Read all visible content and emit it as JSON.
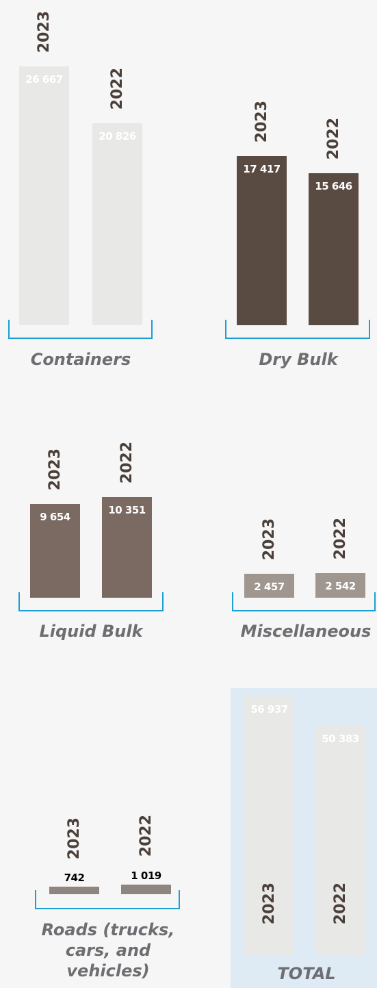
{
  "chart_data": [
    {
      "type": "bar",
      "title": "Containers",
      "categories": [
        "2023",
        "2022"
      ],
      "values": [
        26667,
        20826
      ],
      "value_labels": [
        "26 667",
        "20 826"
      ],
      "color": "#e8e8e6"
    },
    {
      "type": "bar",
      "title": "Dry Bulk",
      "categories": [
        "2023",
        "2022"
      ],
      "values": [
        17417,
        15646
      ],
      "value_labels": [
        "17 417",
        "15 646"
      ],
      "color": "#594a42"
    },
    {
      "type": "bar",
      "title": "Liquid Bulk",
      "categories": [
        "2023",
        "2022"
      ],
      "values": [
        9654,
        10351
      ],
      "value_labels": [
        "9 654",
        "10 351"
      ],
      "color": "#7a6a62"
    },
    {
      "type": "bar",
      "title": "Miscellaneous",
      "categories": [
        "2023",
        "2022"
      ],
      "values": [
        2457,
        2542
      ],
      "value_labels": [
        "2 457",
        "2 542"
      ],
      "color": "#a09690"
    },
    {
      "type": "bar",
      "title": "Roads (trucks, cars, and vehicles)",
      "categories": [
        "2023",
        "2022"
      ],
      "values": [
        742,
        1019
      ],
      "value_labels": [
        "742",
        "1 019"
      ],
      "color": "#8f8580"
    },
    {
      "type": "bar",
      "title": "TOTAL",
      "categories": [
        "2023",
        "2022"
      ],
      "values": [
        56937,
        50383
      ],
      "value_labels": [
        "56 937",
        "50 383"
      ],
      "color": "#e8e8e6"
    }
  ]
}
